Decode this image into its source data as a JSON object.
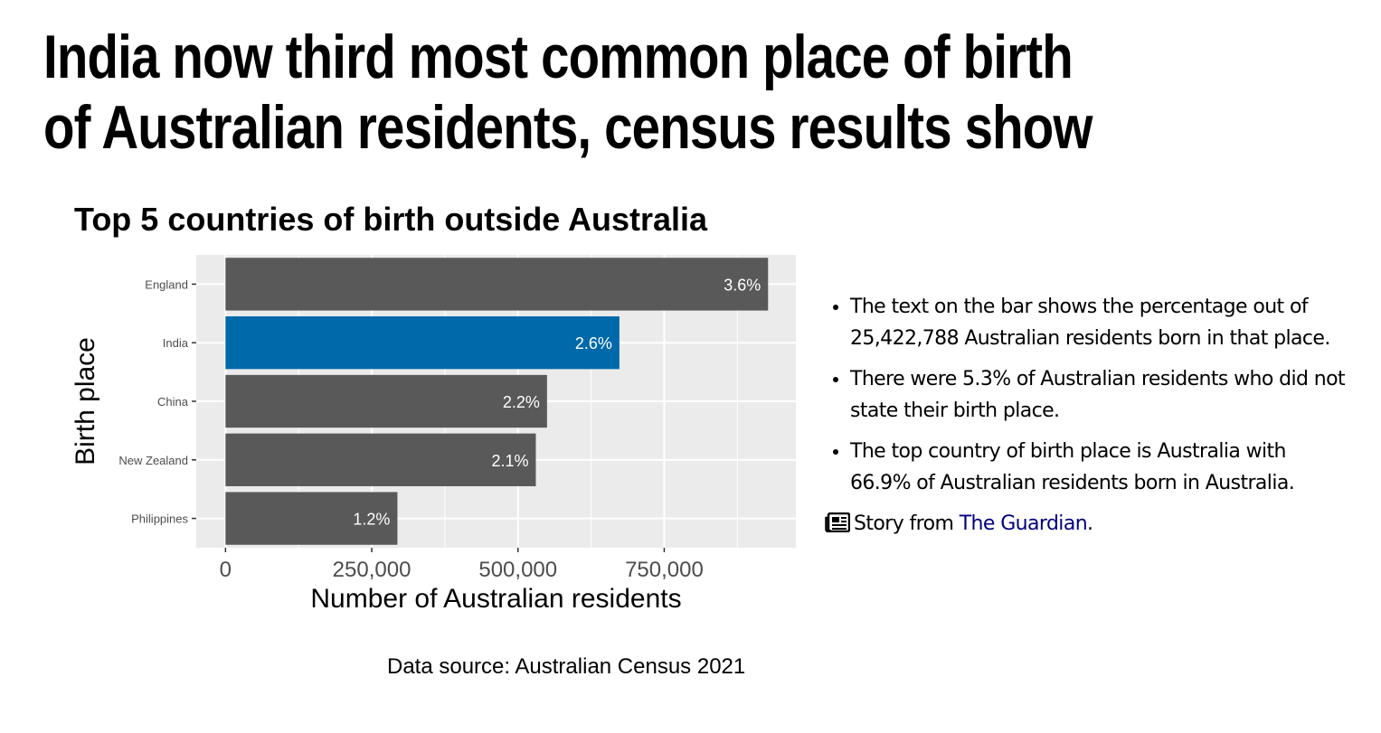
{
  "headline": "India now third most common place of birth of Australian residents, census results show",
  "chart_data": {
    "type": "bar",
    "orientation": "horizontal",
    "title": "Top 5 countries of birth outside Australia",
    "xlabel": "Number of Australian residents",
    "ylabel": "Birth place",
    "categories": [
      "England",
      "India",
      "China",
      "New Zealand",
      "Philippines"
    ],
    "values": [
      927490,
      673352,
      549618,
      530492,
      293892
    ],
    "labels": [
      "3.6%",
      "2.6%",
      "2.2%",
      "2.1%",
      "1.2%"
    ],
    "highlight": "India",
    "bar_color": "#595959",
    "highlight_color": "#0069aa",
    "panel_color": "#ebebeb",
    "xlim": [
      -50000,
      975000
    ],
    "x_ticks": [
      0,
      250000,
      500000,
      750000
    ],
    "x_tick_labels": [
      "0",
      "250,000",
      "500,000",
      "750,000"
    ],
    "grid": true
  },
  "source": "Data source: Australian Census 2021",
  "notes": [
    "The text on the bar shows the percentage out of 25,422,788 Australian residents born in that place.",
    "There were 5.3% of Australian residents who did not state their birth place.",
    "The top country of birth place is Australia with 66.9% of Australian residents born in Australia."
  ],
  "story": {
    "icon": "newspaper-icon",
    "prefix": "Story from ",
    "link_text": "The Guardian",
    "suffix": "."
  }
}
